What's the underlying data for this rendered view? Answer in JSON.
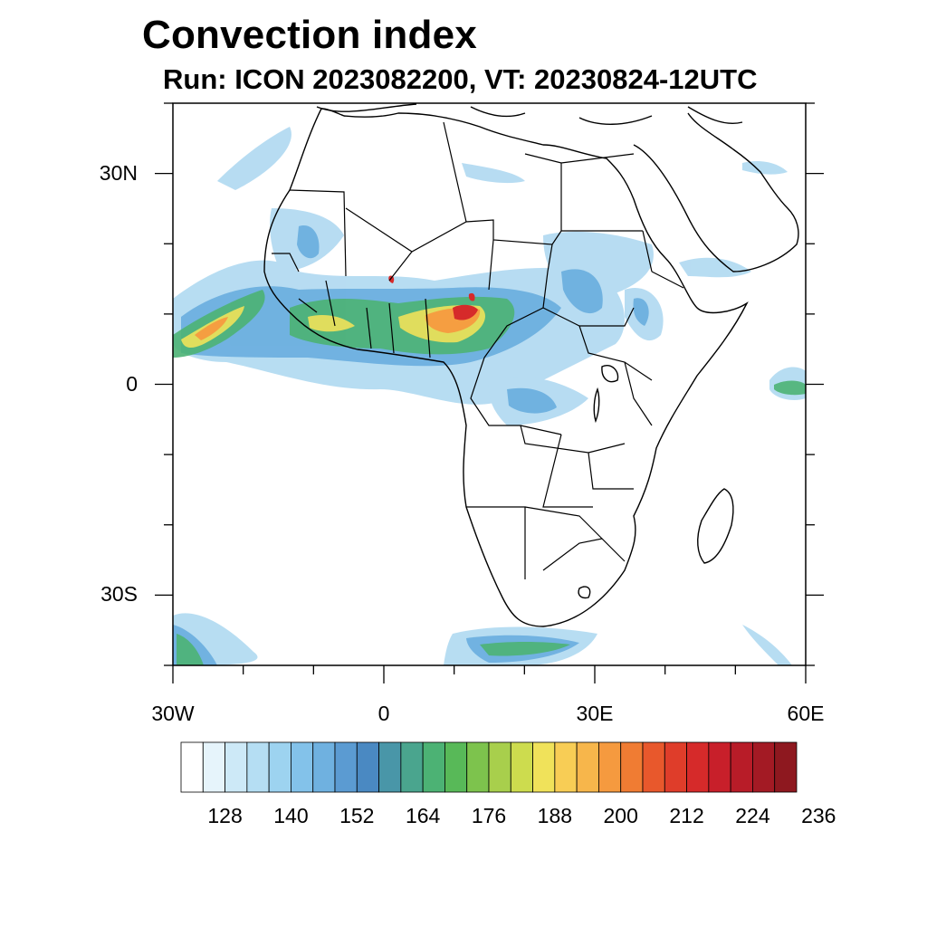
{
  "title": "Convection index",
  "subtitle": "Run: ICON 2023082200,  VT: 20230824-12UTC",
  "map": {
    "region": "Africa",
    "lon_range": [
      -30,
      60
    ],
    "lat_range": [
      -40,
      40
    ],
    "lat_ticks": [
      {
        "value": 30,
        "label": "30N"
      },
      {
        "value": 0,
        "label": "0"
      },
      {
        "value": -30,
        "label": "30S"
      }
    ],
    "lon_ticks": [
      {
        "value": -30,
        "label": "30W"
      },
      {
        "value": 0,
        "label": "0"
      },
      {
        "value": 30,
        "label": "30E"
      },
      {
        "value": 60,
        "label": "60E"
      }
    ]
  },
  "colorbar": {
    "colors": [
      "#ffffff",
      "#e6f4fb",
      "#cde9f7",
      "#b5def3",
      "#9dd3f0",
      "#83c2ea",
      "#6fb1e0",
      "#5b9bd2",
      "#4a89c2",
      "#4996a8",
      "#4aa58e",
      "#4cb274",
      "#58b958",
      "#7dc34d",
      "#a8cf4c",
      "#cddc4e",
      "#f0e25a",
      "#f8cd55",
      "#f7b64b",
      "#f59a3f",
      "#f07c33",
      "#e8582c",
      "#df3d2a",
      "#d62a2a",
      "#c81f2a",
      "#b81c28",
      "#a31a24",
      "#8e181f"
    ],
    "tick_labels": [
      "128",
      "140",
      "152",
      "164",
      "176",
      "188",
      "200",
      "212",
      "224",
      "236"
    ]
  }
}
